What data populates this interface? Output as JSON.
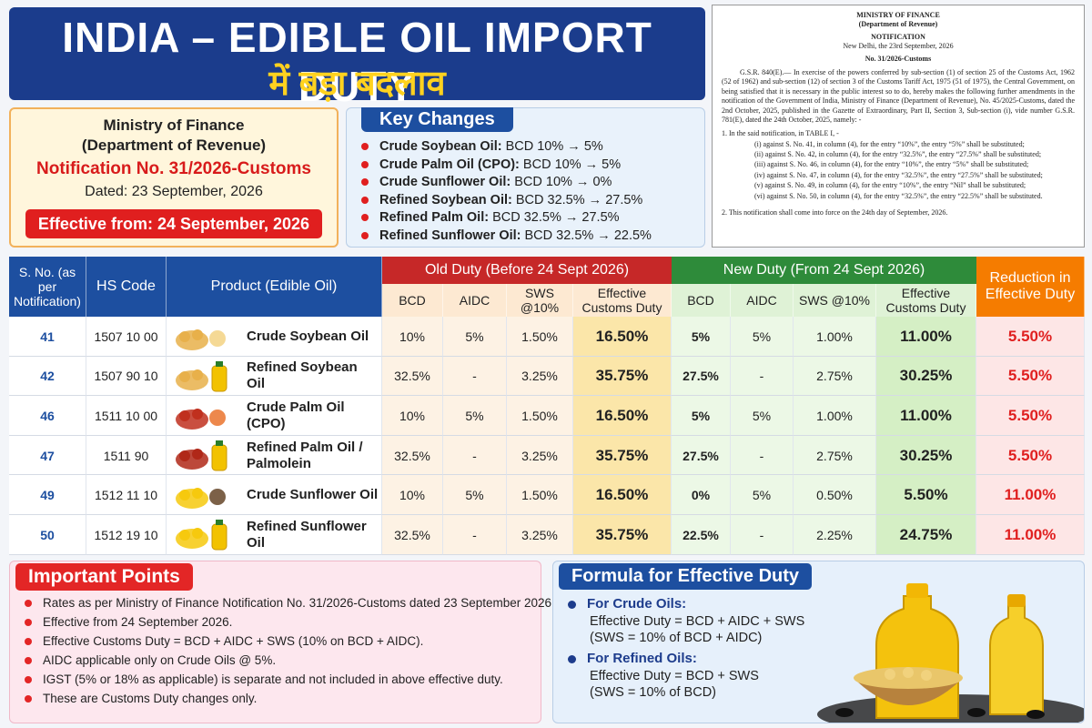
{
  "header": {
    "title": "INDIA – EDIBLE OIL IMPORT DUTY",
    "subtitle": "में बड़ा बदलाव"
  },
  "notice": {
    "ministry": "Ministry of Finance",
    "department": "(Department of Revenue)",
    "notification": "Notification No. 31/2026-Customs",
    "dated": "Dated: 23 September, 2026",
    "effective": "Effective from: 24 September, 2026"
  },
  "key_changes": {
    "title": "Key Changes",
    "items": [
      {
        "name": "Crude Soybean Oil:",
        "change": "BCD 10% → 5%"
      },
      {
        "name": "Crude Palm Oil (CPO):",
        "change": "BCD 10% → 5%"
      },
      {
        "name": "Crude Sunflower Oil:",
        "change": "BCD 10% → 0%"
      },
      {
        "name": "Refined Soybean Oil:",
        "change": "BCD 32.5% → 27.5%"
      },
      {
        "name": "Refined Palm Oil:",
        "change": "BCD 32.5% → 27.5%"
      },
      {
        "name": "Refined Sunflower Oil:",
        "change": "BCD 32.5% → 22.5%"
      }
    ]
  },
  "gazette": {
    "ministry": "MINISTRY OF FINANCE",
    "department": "(Department of Revenue)",
    "heading": "NOTIFICATION",
    "place_date": "New Delhi, the 23rd September, 2026",
    "number": "No. 31/2026-Customs",
    "preamble": "G.S.R. 840(E).— In exercise of the powers conferred by sub-section (1) of section 25 of the Customs Act, 1962 (52 of 1962) and sub-section (12) of section 3 of the Customs Tariff Act, 1975 (51 of 1975), the Central Government, on being satisfied that it is necessary in the public interest so to do, hereby makes the following further amendments in the notification of the Government of India, Ministry of Finance (Department of Revenue), No. 45/2025-Customs, dated the 2nd October, 2025, published in the Gazette of Extraordinary, Part II, Section 3, Sub-section (i), vide number G.S.R. 781(E), dated the 24th October, 2025, namely: -",
    "intro": "1.   In the said notification, in TABLE I, -",
    "items": [
      "(i) against S. No. 41, in column (4), for the entry “10%”, the entry “5%” shall be substituted;",
      "(ii) against S. No. 42, in column (4), for the entry “32.5%”, the entry “27.5%” shall be substituted;",
      "(iii) against S. No. 46, in column (4), for the entry “10%”, the entry “5%” shall be substituted;",
      "(iv) against S. No. 47, in column (4), for the entry “32.5%”, the entry “27.5%” shall be substituted;",
      "(v) against S. No. 49, in column (4), for the entry “10%”, the entry “Nil” shall be substituted;",
      "(vi) against S. No. 50, in column (4), for the entry “32.5%”, the entry “22.5%” shall be substituted."
    ],
    "closing": "2.   This notification shall come into force on the 24th day of September, 2026."
  },
  "table": {
    "group_headers": [
      "Old Duty (Before 24 Sept 2026)",
      "New Duty (From 24 Sept 2026)"
    ],
    "columns": [
      "S. No. (as per Notification)",
      "HS Code",
      "Product (Edible Oil)",
      "BCD",
      "AIDC",
      "SWS @10%",
      "Effective Customs Duty",
      "BCD",
      "AIDC",
      "SWS @10%",
      "Effective Customs Duty",
      "Reduction in Effective Duty"
    ],
    "rows": [
      [
        "41",
        "1507 10 00",
        "Crude Soybean Oil",
        "10%",
        "5%",
        "1.50%",
        "16.50%",
        "5%",
        "5%",
        "1.00%",
        "11.00%",
        "5.50%"
      ],
      [
        "42",
        "1507 90 10",
        "Refined Soybean Oil",
        "32.5%",
        "-",
        "3.25%",
        "35.75%",
        "27.5%",
        "-",
        "2.75%",
        "30.25%",
        "5.50%"
      ],
      [
        "46",
        "1511 10 00",
        "Crude Palm Oil (CPO)",
        "10%",
        "5%",
        "1.50%",
        "16.50%",
        "5%",
        "5%",
        "1.00%",
        "11.00%",
        "5.50%"
      ],
      [
        "47",
        "1511 90",
        "Refined Palm Oil / Palmolein",
        "32.5%",
        "-",
        "3.25%",
        "35.75%",
        "27.5%",
        "-",
        "2.75%",
        "30.25%",
        "5.50%"
      ],
      [
        "49",
        "1512 11 10",
        "Crude Sunflower Oil",
        "10%",
        "5%",
        "1.50%",
        "16.50%",
        "0%",
        "5%",
        "0.50%",
        "5.50%",
        "11.00%"
      ],
      [
        "50",
        "1512 19 10",
        "Refined Sunflower Oil",
        "32.5%",
        "-",
        "3.25%",
        "35.75%",
        "22.5%",
        "-",
        "2.25%",
        "24.75%",
        "11.00%"
      ]
    ]
  },
  "important_points": {
    "title": "Important Points",
    "items": [
      "Rates as per Ministry of Finance Notification No. 31/2026-Customs dated 23 September 2026.",
      "Effective from 24 September 2026.",
      "Effective Customs Duty = BCD + AIDC + SWS (10% on BCD + AIDC).",
      "AIDC applicable only on Crude Oils @ 5%.",
      "IGST (5% or 18% as applicable) is separate and not included in above effective duty.",
      "These are Customs Duty changes only."
    ]
  },
  "formula": {
    "title": "Formula for Effective Duty",
    "crude": {
      "label": "For Crude Oils:",
      "formula": "Effective Duty = BCD + AIDC + SWS",
      "note": "(SWS = 10% of BCD + AIDC)"
    },
    "refined": {
      "label": "For Refined Oils:",
      "formula": "Effective Duty = BCD + SWS",
      "note": "(SWS = 10% of BCD)"
    }
  }
}
